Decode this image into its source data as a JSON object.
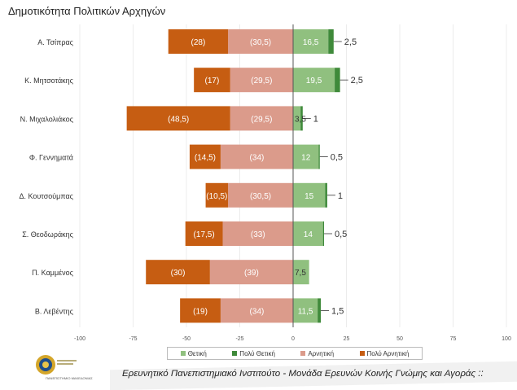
{
  "title": "Δημοτικότητα Πολιτικών Αρχηγών",
  "footer": "Ερευνητικό Πανεπιστημιακό Ινστιτούτο - Μονάδα Ερευνών Κοινής Γνώμης και Αγοράς ::",
  "logo_text": "ΠΑΝΕΠΙΣΤΗΜΙΟ ΜΑΚΕΔΟΝΙΑΣ",
  "colors": {
    "very_negative": "#c65d12",
    "negative": "#db9b8b",
    "positive": "#90c07f",
    "very_positive": "#3f8a3a"
  },
  "chart_data": {
    "type": "bar",
    "orientation": "horizontal",
    "stacked": "diverging",
    "title": "Δημοτικότητα Πολιτικών Αρχηγών",
    "xlim": [
      -100,
      100
    ],
    "xticks": [
      -100,
      -75,
      -50,
      -25,
      0,
      25,
      50,
      75,
      100
    ],
    "legend_position": "bottom",
    "categories": [
      "Α. Τσίπρας",
      "Κ. Μητσοτάκης",
      "Ν. Μιχαλολιάκος",
      "Φ. Γεννηματά",
      "Δ. Κουτσούμπας",
      "Σ. Θεοδωράκης",
      "Π. Καμμένος",
      "Β. Λεβέντης"
    ],
    "series": [
      {
        "name": "Θετική",
        "values": [
          16.5,
          19.5,
          3.5,
          12,
          15,
          14,
          7.5,
          11.5
        ],
        "labels": [
          "16,5",
          "19,5",
          "3,5",
          "12",
          "15",
          "14",
          "7,5",
          "11,5"
        ]
      },
      {
        "name": "Πολύ Θετική",
        "values": [
          2.5,
          2.5,
          1,
          0.5,
          1,
          0.5,
          0,
          1.5
        ],
        "labels": [
          "2,5",
          "2,5",
          "1",
          "0,5",
          "1",
          "0,5",
          "",
          "1,5"
        ]
      },
      {
        "name": "Αρνητική",
        "values": [
          -30.5,
          -29.5,
          -29.5,
          -34,
          -30.5,
          -33,
          -39,
          -34
        ],
        "labels": [
          "(30,5)",
          "(29,5)",
          "(29,5)",
          "(34)",
          "(30,5)",
          "(33)",
          "(39)",
          "(34)"
        ]
      },
      {
        "name": "Πολύ Αρνητική",
        "values": [
          -28,
          -17,
          -48.5,
          -14.5,
          -10.5,
          -17.5,
          -30,
          -19
        ],
        "labels": [
          "(28)",
          "(17)",
          "(48,5)",
          "(14,5)",
          "(10,5)",
          "(17,5)",
          "(30)",
          "(19)"
        ]
      }
    ]
  }
}
